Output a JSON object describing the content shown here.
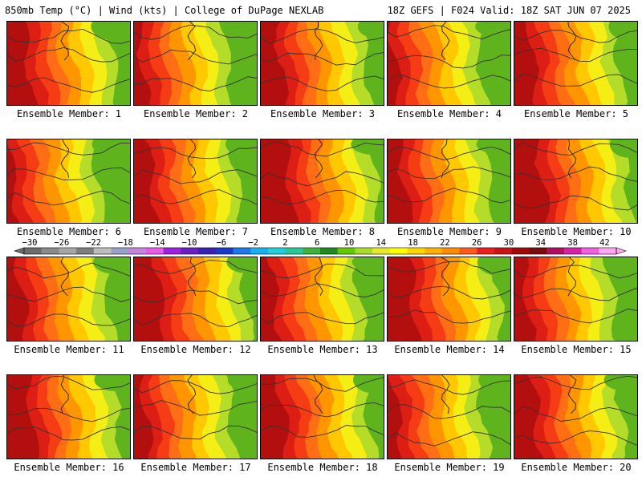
{
  "header": {
    "left": "850mb Temp (°C) | Wind (kts) | College of DuPage NEXLAB",
    "right": "18Z GEFS | F024 Valid: 18Z SAT JUN 07 2025"
  },
  "panels": [
    "Ensemble Member: 1",
    "Ensemble Member: 2",
    "Ensemble Member: 3",
    "Ensemble Member: 4",
    "Ensemble Member: 5",
    "Ensemble Member: 6",
    "Ensemble Member: 7",
    "Ensemble Member: 8",
    "Ensemble Member: 9",
    "Ensemble Member: 10",
    "Ensemble Member: 11",
    "Ensemble Member: 12",
    "Ensemble Member: 13",
    "Ensemble Member: 14",
    "Ensemble Member: 15",
    "Ensemble Member: 16",
    "Ensemble Member: 17",
    "Ensemble Member: 18",
    "Ensemble Member: 19",
    "Ensemble Member: 20"
  ],
  "colorbar": {
    "ticks": [
      "−30",
      "−26",
      "−22",
      "−18",
      "−14",
      "−10",
      "−6",
      "−2",
      "2",
      "6",
      "10",
      "14",
      "18",
      "22",
      "26",
      "30",
      "34",
      "38",
      "42"
    ],
    "colors": [
      "#6d6d6d",
      "#8a8a8a",
      "#a6a6a6",
      "#7f7f7f",
      "#bdbdbd",
      "#9aa2c9",
      "#c783e0",
      "#e85ce8",
      "#a020e0",
      "#6a20c0",
      "#3a22b0",
      "#1a3ac8",
      "#1e78e8",
      "#18b0f0",
      "#20d0d8",
      "#28c898",
      "#3cb43c",
      "#208a20",
      "#62c800",
      "#a8dc28",
      "#e6ea28",
      "#ffff00",
      "#ffd600",
      "#ffb000",
      "#ff8c00",
      "#ff5a1e",
      "#ec1e1e",
      "#c81414",
      "#a00a0a",
      "#7a0a10",
      "#b01060",
      "#d820a8",
      "#f060e0",
      "#ffa8f0"
    ]
  },
  "palette": {
    "cold_green": "#5fb41e",
    "green_yellow": "#b4dc28",
    "yellow": "#f5ee14",
    "light_orange": "#ffc800",
    "orange": "#ff9600",
    "dark_orange": "#ff6e14",
    "red_orange": "#f53c14",
    "red": "#dc1e14",
    "dark_red": "#b40f0f"
  }
}
